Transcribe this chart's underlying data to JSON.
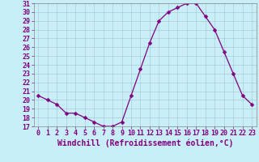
{
  "x": [
    0,
    1,
    2,
    3,
    4,
    5,
    6,
    7,
    8,
    9,
    10,
    11,
    12,
    13,
    14,
    15,
    16,
    17,
    18,
    19,
    20,
    21,
    22,
    23
  ],
  "y": [
    20.5,
    20.0,
    19.5,
    18.5,
    18.5,
    18.0,
    17.5,
    17.0,
    17.0,
    17.5,
    20.5,
    23.5,
    26.5,
    29.0,
    30.0,
    30.5,
    31.0,
    31.0,
    29.5,
    28.0,
    25.5,
    23.0,
    20.5,
    19.5
  ],
  "line_color": "#800080",
  "marker": "D",
  "marker_size": 2.5,
  "bg_color": "#c8eef8",
  "grid_color": "#aaccdd",
  "xlabel": "Windchill (Refroidissement éolien,°C)",
  "xlabel_color": "#800080",
  "tick_color": "#800080",
  "ylim": [
    17,
    31
  ],
  "xlim": [
    -0.5,
    23.5
  ],
  "yticks": [
    17,
    18,
    19,
    20,
    21,
    22,
    23,
    24,
    25,
    26,
    27,
    28,
    29,
    30,
    31
  ],
  "xticks": [
    0,
    1,
    2,
    3,
    4,
    5,
    6,
    7,
    8,
    9,
    10,
    11,
    12,
    13,
    14,
    15,
    16,
    17,
    18,
    19,
    20,
    21,
    22,
    23
  ],
  "font_size": 6,
  "xlabel_fontsize": 7
}
